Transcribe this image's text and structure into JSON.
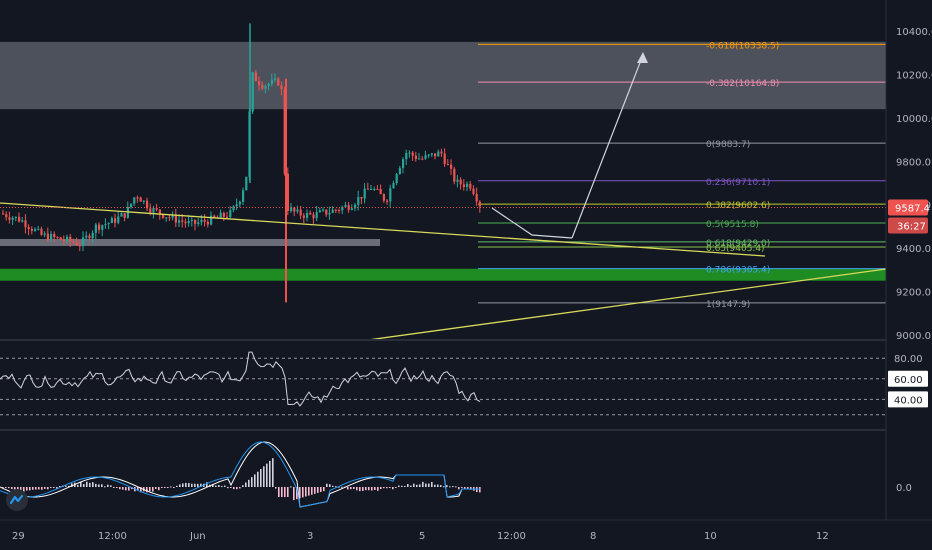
{
  "colors": {
    "background": "#131722",
    "up": "#26a69a",
    "down": "#ef5350",
    "resistance_zone": "#5d606b",
    "support_zone": "#1e8c22",
    "trendline": "#d8d85a",
    "rsi_line": "#d1d4dc",
    "macd_line": "#ffffff",
    "signal_line": "#2196f3"
  },
  "price_axis": {
    "ticks": [
      "10400.0",
      "10200.0",
      "10000.0",
      "9800.0",
      "9600.0",
      "9400.0",
      "9200.0",
      "9000.0"
    ],
    "current_price": "9587.4",
    "countdown": "36:27",
    "range": [
      8970,
      10450
    ]
  },
  "time_axis": {
    "ticks": [
      "29",
      "12:00",
      "Jun",
      "3",
      "5",
      "12:00",
      "8",
      "10",
      "12"
    ]
  },
  "fib_levels": [
    {
      "label": "-0.618(10338.5)",
      "price": 10338.5,
      "color": "#ff9800"
    },
    {
      "label": "-0.382(10164.8)",
      "price": 10164.8,
      "color": "#f48fb1"
    },
    {
      "label": "0(9883.7)",
      "price": 9883.7,
      "color": "#9598a1"
    },
    {
      "label": "0.236(9710.1)",
      "price": 9710.1,
      "color": "#7e57c2"
    },
    {
      "label": "0.382(9602.6)",
      "price": 9602.6,
      "color": "#c0ca33"
    },
    {
      "label": "0.5(9515.8)",
      "price": 9515.8,
      "color": "#4caf50"
    },
    {
      "label": "0.618(9429.0)",
      "price": 9429.0,
      "color": "#66bb6a"
    },
    {
      "label": "0.65(9405.4)",
      "price": 9405.4,
      "color": "#8bc34a"
    },
    {
      "label": "0.786(9305.4)",
      "price": 9305.4,
      "color": "#42a5f5"
    },
    {
      "label": "1(9147.9)",
      "price": 9147.9,
      "color": "#9598a1"
    }
  ],
  "zones": {
    "resistance": [
      10040,
      10350
    ],
    "support": [
      9250,
      9305
    ]
  },
  "rsi": {
    "ticks": [
      "80.00",
      "60.00",
      "40.00"
    ],
    "range": [
      15,
      88
    ]
  },
  "macd": {
    "ticks": [
      "0.0"
    ]
  },
  "brand": {
    "logo": "tradingview-logo-icon"
  }
}
